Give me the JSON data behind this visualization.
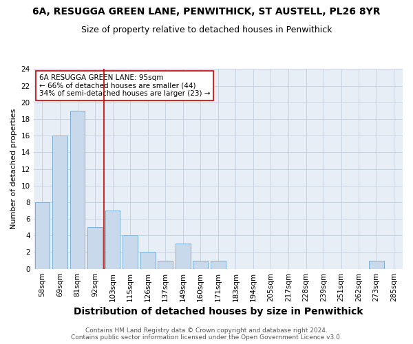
{
  "title1": "6A, RESUGGA GREEN LANE, PENWITHICK, ST AUSTELL, PL26 8YR",
  "title2": "Size of property relative to detached houses in Penwithick",
  "xlabel": "Distribution of detached houses by size in Penwithick",
  "ylabel": "Number of detached properties",
  "categories": [
    "58sqm",
    "69sqm",
    "81sqm",
    "92sqm",
    "103sqm",
    "115sqm",
    "126sqm",
    "137sqm",
    "149sqm",
    "160sqm",
    "171sqm",
    "183sqm",
    "194sqm",
    "205sqm",
    "217sqm",
    "228sqm",
    "239sqm",
    "251sqm",
    "262sqm",
    "273sqm",
    "285sqm"
  ],
  "values": [
    8,
    16,
    19,
    5,
    7,
    4,
    2,
    1,
    3,
    1,
    1,
    0,
    0,
    0,
    0,
    0,
    0,
    0,
    0,
    1,
    0
  ],
  "bar_color": "#c9d9ec",
  "bar_edge_color": "#7bafd4",
  "grid_color": "#c8d4e3",
  "background_color": "#e8eef6",
  "vline_color": "#cc0000",
  "annotation_text": "6A RESUGGA GREEN LANE: 95sqm\n← 66% of detached houses are smaller (44)\n34% of semi-detached houses are larger (23) →",
  "annotation_box_color": "#ffffff",
  "annotation_box_edge": "#cc0000",
  "ylim": [
    0,
    24
  ],
  "yticks": [
    0,
    2,
    4,
    6,
    8,
    10,
    12,
    14,
    16,
    18,
    20,
    22,
    24
  ],
  "footer": "Contains HM Land Registry data © Crown copyright and database right 2024.\nContains public sector information licensed under the Open Government Licence v3.0.",
  "title1_fontsize": 10,
  "title2_fontsize": 9,
  "xlabel_fontsize": 10,
  "ylabel_fontsize": 8,
  "tick_fontsize": 7.5,
  "annotation_fontsize": 7.5,
  "footer_fontsize": 6.5
}
